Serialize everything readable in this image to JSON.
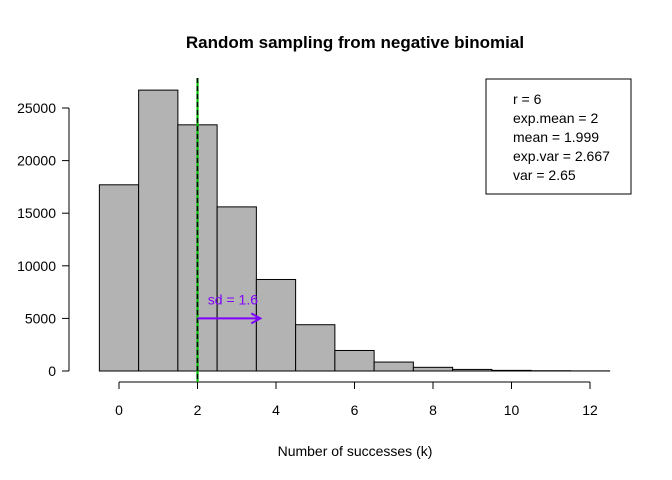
{
  "chart_data": {
    "type": "bar",
    "title": "Random sampling from negative binomial",
    "xlabel": "Number of successes (k)",
    "ylabel": "",
    "bins": [
      {
        "x0": -0.5,
        "x1": 0.5,
        "count": 17700
      },
      {
        "x0": 0.5,
        "x1": 1.5,
        "count": 26700
      },
      {
        "x0": 1.5,
        "x1": 2.5,
        "count": 23400
      },
      {
        "x0": 2.5,
        "x1": 3.5,
        "count": 15600
      },
      {
        "x0": 3.5,
        "x1": 4.5,
        "count": 8700
      },
      {
        "x0": 4.5,
        "x1": 5.5,
        "count": 4400
      },
      {
        "x0": 5.5,
        "x1": 6.5,
        "count": 1950
      },
      {
        "x0": 6.5,
        "x1": 7.5,
        "count": 850
      },
      {
        "x0": 7.5,
        "x1": 8.5,
        "count": 350
      },
      {
        "x0": 8.5,
        "x1": 9.5,
        "count": 150
      },
      {
        "x0": 9.5,
        "x1": 10.5,
        "count": 60
      },
      {
        "x0": 10.5,
        "x1": 11.5,
        "count": 25
      },
      {
        "x0": 11.5,
        "x1": 12.5,
        "count": 10
      }
    ],
    "xlim": [
      -0.5,
      12.5
    ],
    "ylim": [
      0,
      27500
    ],
    "xticks": [
      0,
      2,
      4,
      6,
      8,
      10,
      12
    ],
    "yticks": [
      0,
      5000,
      10000,
      15000,
      20000,
      25000
    ],
    "bar_color": "#b3b3b3",
    "lines": [
      {
        "x": 2,
        "color": "#00c000",
        "style": "solid"
      },
      {
        "x": 1.999,
        "color": "#000000",
        "style": "dashed"
      }
    ],
    "arrow": {
      "x_from": 2,
      "x_to": 3.6,
      "y": 5000,
      "color": "#8000ff",
      "label": "sd = 1.6"
    },
    "legend": {
      "placement": "top-right",
      "items": [
        "r = 6",
        "exp.mean = 2",
        "mean = 1.999",
        "exp.var = 2.667",
        "var = 2.65"
      ]
    }
  }
}
